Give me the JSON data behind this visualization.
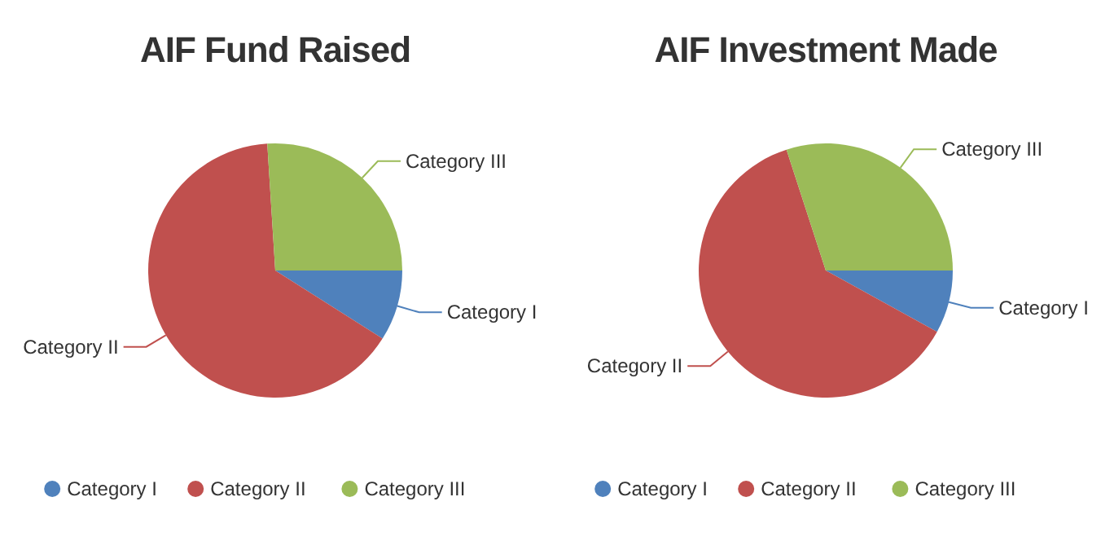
{
  "chart_data": [
    {
      "type": "pie",
      "title": "AIF Fund Raised",
      "categories": [
        "Category I",
        "Category II",
        "Category III"
      ],
      "values": [
        9,
        65,
        26
      ],
      "colors": [
        "#4f81bc",
        "#c0504e",
        "#9bbb58"
      ],
      "legend": "bottom"
    },
    {
      "type": "pie",
      "title": "AIF Investment Made",
      "categories": [
        "Category I",
        "Category II",
        "Category III"
      ],
      "values": [
        8,
        62,
        30
      ],
      "colors": [
        "#4f81bc",
        "#c0504e",
        "#9bbb58"
      ],
      "legend": "bottom"
    }
  ]
}
